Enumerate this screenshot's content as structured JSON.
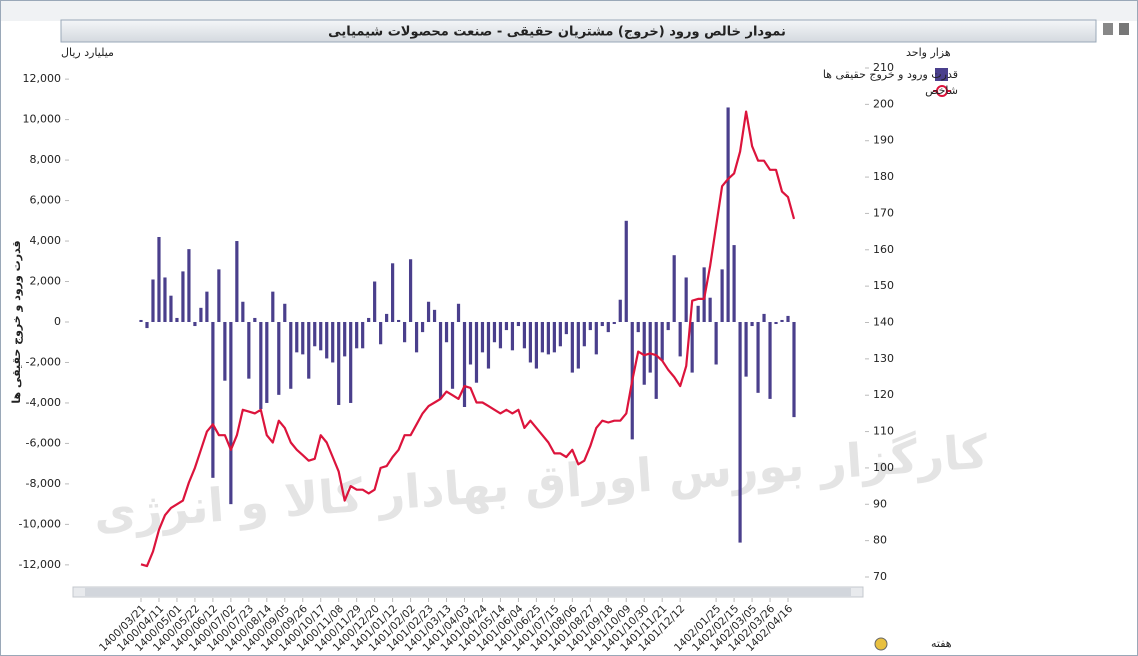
{
  "chart_data": {
    "type": "bar_line",
    "title": "نمودار خالص ورود (خروج) مشتریان حقیقی - صنعت محصولات شیمیایی",
    "y_unit": "میلیارد ریال",
    "y2_unit": "هزار واحد",
    "y_label": "قدرت ورود و خروج حقیقی ها",
    "x_label": "هفته",
    "watermark": "کارگزار بورس اوراق بهادار کالا و انرژی",
    "categories": [
      "1400/03/21",
      null,
      null,
      "1400/04/11",
      null,
      null,
      "1400/05/01",
      null,
      null,
      "1400/05/22",
      null,
      null,
      "1400/06/12",
      null,
      null,
      "1400/07/02",
      null,
      null,
      "1400/07/23",
      null,
      null,
      "1400/08/14",
      null,
      null,
      "1400/09/05",
      null,
      null,
      "1400/09/26",
      null,
      null,
      "1400/10/17",
      null,
      null,
      "1400/11/08",
      null,
      null,
      "1400/11/29",
      null,
      null,
      "1400/12/20",
      null,
      null,
      "1401/01/12",
      null,
      null,
      "1401/02/02",
      null,
      null,
      "1401/02/23",
      null,
      null,
      "1401/03/13",
      null,
      null,
      "1401/04/03",
      null,
      null,
      "1401/04/24",
      null,
      null,
      "1401/05/14",
      null,
      null,
      "1401/06/04",
      null,
      null,
      "1401/06/25",
      null,
      null,
      "1401/07/15",
      null,
      null,
      "1401/08/06",
      null,
      null,
      "1401/08/27",
      null,
      null,
      "1401/09/18",
      null,
      null,
      "1401/10/09",
      null,
      null,
      "1401/10/30",
      null,
      null,
      "1401/11/21",
      null,
      null,
      "1401/12/12",
      null,
      null,
      null,
      null,
      null,
      "1402/01/25",
      null,
      null,
      "1402/02/15",
      null,
      null,
      "1402/03/05",
      null,
      null,
      "1402/03/26",
      null,
      null,
      "1402/04/16",
      null
    ],
    "series": [
      {
        "name": "قدرت ورود و خروج حقیقی ها",
        "kind": "bar",
        "color": "#4a3f8c",
        "values": [
          100,
          -300,
          2100,
          4200,
          2200,
          1300,
          200,
          2500,
          3600,
          -200,
          700,
          1500,
          -7700,
          2600,
          -2900,
          -9000,
          4000,
          1000,
          -2800,
          200,
          -4300,
          -4000,
          1500,
          -3600,
          900,
          -3300,
          -1500,
          -1600,
          -2800,
          -1200,
          -1400,
          -1800,
          -2000,
          -4100,
          -1700,
          -4000,
          -1300,
          -1300,
          200,
          2000,
          -1100,
          400,
          2900,
          100,
          -1000,
          3100,
          -1500,
          -500,
          1000,
          600,
          -3800,
          -1000,
          -3300,
          900,
          -4200,
          -2100,
          -3000,
          -1500,
          -2300,
          -1000,
          -1300,
          -400,
          -1400,
          -200,
          -1300,
          -2000,
          -2300,
          -1500,
          -1600,
          -1500,
          -1200,
          -600,
          -2500,
          -2300,
          -1200,
          -400,
          -1600,
          -200,
          -500,
          -100,
          1100,
          5000,
          -5800,
          -500,
          -3100,
          -2500,
          -3800,
          -1900,
          -400,
          3300,
          -1700,
          2200,
          -2500,
          800,
          2700,
          1200,
          -2100,
          2600,
          10600,
          3800,
          -10900,
          -2700,
          -200,
          -3500,
          400,
          -3800,
          -100,
          100,
          300,
          -4700
        ]
      },
      {
        "name": "شاخص",
        "kind": "line",
        "axis": "y2",
        "color": "#dc143c",
        "values": [
          73.5,
          73,
          77,
          83,
          87,
          89,
          90,
          91,
          96,
          100,
          105,
          110,
          112,
          109,
          109,
          105,
          109,
          116,
          115.5,
          115,
          116,
          109,
          107,
          113,
          111,
          107,
          105,
          103.5,
          102,
          102.5,
          109,
          107,
          103,
          99,
          91,
          95,
          94,
          94,
          93,
          94,
          100,
          100.5,
          103,
          105,
          109,
          109,
          112,
          115,
          117,
          118,
          119,
          121,
          120,
          119,
          122.5,
          122,
          118,
          118,
          117,
          116,
          115,
          116,
          115,
          116,
          111,
          113,
          111,
          109,
          107,
          104,
          104,
          103,
          105,
          101,
          102,
          106,
          111,
          113,
          112.5,
          113,
          113,
          115,
          124,
          132,
          131,
          131.5,
          131,
          129.5,
          127,
          125,
          122.5,
          128,
          146,
          146.5,
          146.5,
          155.5,
          166.5,
          177.5,
          179.5,
          181,
          187,
          198,
          188.5,
          184.5,
          184.5,
          182,
          182,
          176,
          174.5,
          168.5
        ]
      }
    ],
    "ylim": [
      -12600,
      12550
    ],
    "yticks": [
      {
        "value": -12000,
        "label": "-12,000"
      },
      {
        "value": -10000,
        "label": "-10,000"
      },
      {
        "value": -8000,
        "label": "-8,000"
      },
      {
        "value": -6000,
        "label": "-6,000"
      },
      {
        "value": -4000,
        "label": "-4,000"
      },
      {
        "value": -2000,
        "label": "-2,000"
      },
      0,
      {
        "value": 2000,
        "label": "2,000"
      },
      {
        "value": 4000,
        "label": "4,000"
      },
      {
        "value": 6000,
        "label": "6,000"
      },
      {
        "value": 8000,
        "label": "8,000"
      },
      {
        "value": 10000,
        "label": "10,000"
      },
      {
        "value": 12000,
        "label": "12,000"
      }
    ],
    "y2lim": [
      70,
      210
    ],
    "y2ticks": [
      70,
      80,
      90,
      100,
      110,
      120,
      130,
      140,
      150,
      160,
      170,
      180,
      190,
      200,
      210
    ],
    "legend": "right"
  }
}
